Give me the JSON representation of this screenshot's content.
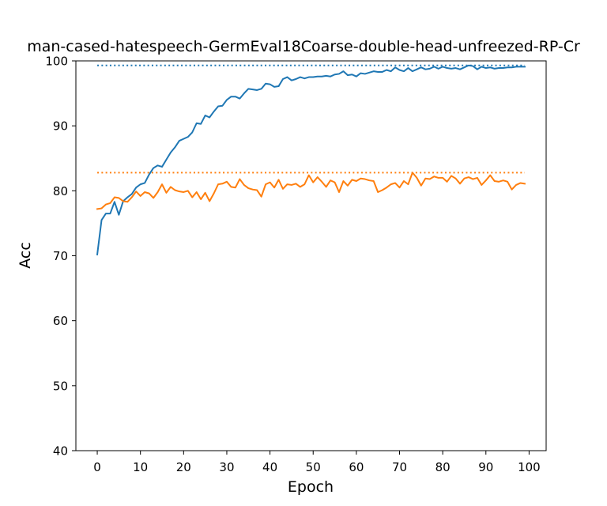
{
  "chart_data": {
    "type": "line",
    "title": "man-cased-hatespeech-GermEval18Coarse-double-head-unfreezed-RP-Cr",
    "xlabel": "Epoch",
    "ylabel": "Acc",
    "xlim": [
      -4.95,
      103.95
    ],
    "ylim": [
      40,
      100
    ],
    "xticks": [
      0,
      10,
      20,
      30,
      40,
      50,
      60,
      70,
      80,
      90,
      100
    ],
    "yticks": [
      40,
      50,
      60,
      70,
      80,
      90,
      100
    ],
    "xtick_labels": [
      "0",
      "10",
      "20",
      "30",
      "40",
      "50",
      "60",
      "70",
      "80",
      "90",
      "100"
    ],
    "ytick_labels": [
      "40",
      "50",
      "60",
      "70",
      "80",
      "90",
      "100"
    ],
    "grid": false,
    "legend": null,
    "series": [
      {
        "color": "#1f77b4",
        "style": "solid",
        "x": [
          0,
          1,
          2,
          3,
          4,
          5,
          6,
          7,
          8,
          9,
          10,
          11,
          12,
          13,
          14,
          15,
          16,
          17,
          18,
          19,
          20,
          21,
          22,
          23,
          24,
          25,
          26,
          27,
          28,
          29,
          30,
          31,
          32,
          33,
          34,
          35,
          36,
          37,
          38,
          39,
          40,
          41,
          42,
          43,
          44,
          45,
          46,
          47,
          48,
          49,
          50,
          51,
          52,
          53,
          54,
          55,
          56,
          57,
          58,
          59,
          60,
          61,
          62,
          63,
          64,
          65,
          66,
          67,
          68,
          69,
          70,
          71,
          72,
          73,
          74,
          75,
          76,
          77,
          78,
          79,
          80,
          81,
          82,
          83,
          84,
          85,
          86,
          87,
          88,
          89,
          90,
          91,
          92,
          93,
          94,
          95,
          96,
          97,
          98,
          99
        ],
        "values": [
          70.2,
          75.5,
          76.5,
          76.5,
          78.3,
          76.3,
          78.4,
          79.0,
          79.5,
          80.5,
          81.0,
          81.2,
          82.5,
          83.5,
          83.9,
          83.7,
          84.8,
          85.9,
          86.7,
          87.7,
          88.0,
          88.3,
          89.0,
          90.4,
          90.3,
          91.6,
          91.3,
          92.2,
          93.0,
          93.1,
          94.0,
          94.5,
          94.5,
          94.2,
          95.0,
          95.7,
          95.6,
          95.5,
          95.7,
          96.5,
          96.4,
          96.0,
          96.1,
          97.2,
          97.5,
          97.0,
          97.2,
          97.5,
          97.3,
          97.5,
          97.5,
          97.6,
          97.6,
          97.7,
          97.6,
          97.9,
          98.0,
          98.4,
          97.8,
          97.9,
          97.6,
          98.1,
          98.0,
          98.2,
          98.4,
          98.3,
          98.3,
          98.6,
          98.4,
          99.0,
          98.6,
          98.4,
          98.9,
          98.4,
          98.7,
          99.0,
          98.7,
          98.8,
          99.1,
          98.8,
          99.1,
          98.9,
          98.8,
          98.9,
          98.7,
          99.0,
          99.3,
          99.2,
          98.7,
          99.1,
          98.9,
          99.0,
          98.8,
          98.9,
          98.9,
          99.0,
          99.0,
          99.1,
          99.1,
          99.1
        ]
      },
      {
        "color": "#ff7f0e",
        "style": "solid",
        "x": [
          0,
          1,
          2,
          3,
          4,
          5,
          6,
          7,
          8,
          9,
          10,
          11,
          12,
          13,
          14,
          15,
          16,
          17,
          18,
          19,
          20,
          21,
          22,
          23,
          24,
          25,
          26,
          27,
          28,
          29,
          30,
          31,
          32,
          33,
          34,
          35,
          36,
          37,
          38,
          39,
          40,
          41,
          42,
          43,
          44,
          45,
          46,
          47,
          48,
          49,
          50,
          51,
          52,
          53,
          54,
          55,
          56,
          57,
          58,
          59,
          60,
          61,
          62,
          63,
          64,
          65,
          66,
          67,
          68,
          69,
          70,
          71,
          72,
          73,
          74,
          75,
          76,
          77,
          78,
          79,
          80,
          81,
          82,
          83,
          84,
          85,
          86,
          87,
          88,
          89,
          90,
          91,
          92,
          93,
          94,
          95,
          96,
          97,
          98,
          99
        ],
        "values": [
          77.2,
          77.3,
          77.9,
          78.1,
          79.0,
          78.9,
          78.4,
          78.3,
          79.0,
          79.9,
          79.2,
          79.8,
          79.6,
          78.9,
          79.8,
          81.0,
          79.7,
          80.6,
          80.1,
          79.9,
          79.8,
          80.0,
          79.0,
          79.8,
          78.7,
          79.7,
          78.4,
          79.6,
          81.0,
          81.1,
          81.4,
          80.6,
          80.5,
          81.8,
          80.9,
          80.4,
          80.2,
          80.1,
          79.1,
          81.0,
          81.3,
          80.5,
          81.7,
          80.3,
          81.0,
          80.9,
          81.1,
          80.6,
          81.0,
          82.4,
          81.3,
          82.1,
          81.4,
          80.6,
          81.6,
          81.3,
          79.8,
          81.5,
          80.8,
          81.7,
          81.5,
          81.9,
          81.8,
          81.6,
          81.5,
          79.8,
          80.1,
          80.5,
          81.0,
          81.2,
          80.5,
          81.5,
          81.0,
          82.8,
          82.0,
          80.8,
          81.9,
          81.8,
          82.2,
          82.0,
          82.0,
          81.4,
          82.3,
          81.9,
          81.1,
          81.9,
          82.1,
          81.8,
          82.0,
          80.9,
          81.6,
          82.4,
          81.5,
          81.4,
          81.6,
          81.4,
          80.2,
          80.9,
          81.2,
          81.1
        ]
      },
      {
        "color": "#1f77b4",
        "style": "dotted",
        "x": [
          0,
          99
        ],
        "values": [
          99.3,
          99.3
        ]
      },
      {
        "color": "#ff7f0e",
        "style": "dotted",
        "x": [
          0,
          99
        ],
        "values": [
          82.8,
          82.8
        ]
      }
    ]
  }
}
